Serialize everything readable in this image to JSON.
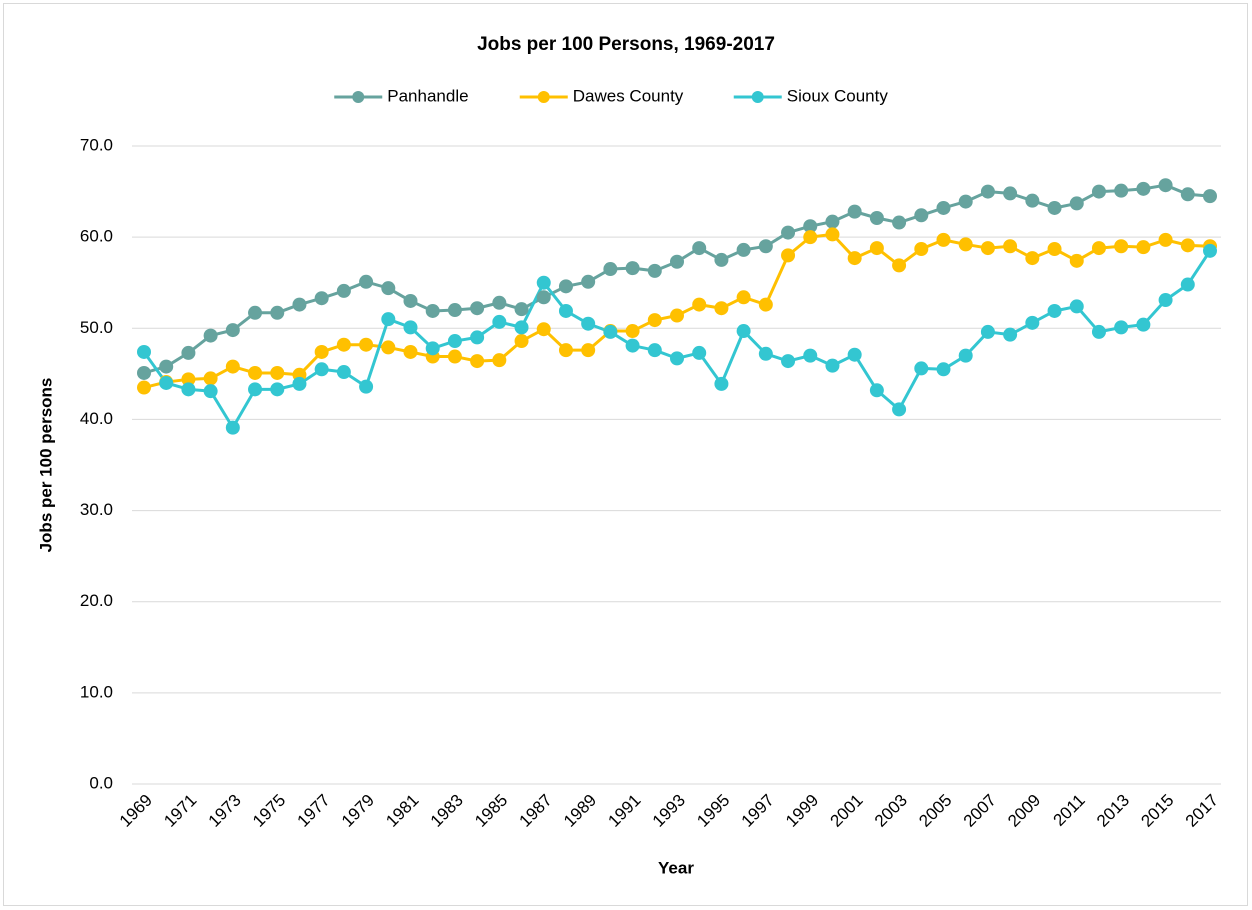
{
  "chart_data": {
    "type": "line",
    "title": "Jobs per 100 Persons, 1969-2017",
    "x_label": "Year",
    "y_label": "Jobs per 100 persons",
    "categories": [
      "1969",
      null,
      "1971",
      null,
      "1973",
      null,
      "1975",
      null,
      "1977",
      null,
      "1979",
      null,
      "1981",
      null,
      "1983",
      null,
      "1985",
      null,
      "1987",
      null,
      "1989",
      null,
      "1991",
      null,
      "1993",
      null,
      "1995",
      null,
      "1997",
      null,
      "1999",
      null,
      "2001",
      null,
      "2003",
      null,
      "2005",
      null,
      "2007",
      null,
      "2009",
      null,
      "2011",
      null,
      "2013",
      null,
      "2015",
      null,
      "2017"
    ],
    "series": [
      {
        "name": "Panhandle",
        "color": "#66a39e",
        "values": [
          45.1,
          45.8,
          47.3,
          49.2,
          49.8,
          51.7,
          51.7,
          52.6,
          53.3,
          54.1,
          55.1,
          54.4,
          53.0,
          51.9,
          52.0,
          52.2,
          52.8,
          52.1,
          53.4,
          54.6,
          55.1,
          56.5,
          56.6,
          56.3,
          57.3,
          58.8,
          57.5,
          58.6,
          59.0,
          60.5,
          61.2,
          61.7,
          62.8,
          62.1,
          61.6,
          62.4,
          63.2,
          63.9,
          65.0,
          64.8,
          64.0,
          63.2,
          63.7,
          65.0,
          65.1,
          65.3,
          65.7,
          64.7,
          64.5
        ]
      },
      {
        "name": "Dawes County",
        "color": "#ffc000",
        "values": [
          43.5,
          44.1,
          44.4,
          44.5,
          45.8,
          45.1,
          45.1,
          44.9,
          47.4,
          48.2,
          48.2,
          47.9,
          47.4,
          46.9,
          46.9,
          46.4,
          46.5,
          48.6,
          49.9,
          47.6,
          47.6,
          49.7,
          49.7,
          50.9,
          51.4,
          52.6,
          52.2,
          53.4,
          52.6,
          58.0,
          60.0,
          60.3,
          57.7,
          58.8,
          56.9,
          58.7,
          59.7,
          59.2,
          58.8,
          59.0,
          57.7,
          58.7,
          57.4,
          58.8,
          59.0,
          58.9,
          59.7,
          59.1,
          59.0
        ]
      },
      {
        "name": "Sioux County",
        "color": "#33c6d1",
        "values": [
          47.4,
          44.0,
          43.3,
          43.1,
          39.1,
          43.3,
          43.3,
          43.9,
          45.5,
          45.2,
          43.6,
          51.0,
          50.1,
          47.8,
          48.6,
          49.0,
          50.7,
          50.1,
          55.0,
          51.9,
          50.5,
          49.6,
          48.1,
          47.6,
          46.7,
          47.3,
          43.9,
          49.7,
          47.2,
          46.4,
          47.0,
          45.9,
          47.1,
          43.2,
          41.1,
          45.6,
          45.5,
          47.0,
          49.6,
          49.3,
          50.6,
          51.9,
          52.4,
          49.6,
          50.1,
          50.4,
          53.1,
          54.8,
          58.5
        ]
      }
    ],
    "ylim": [
      0,
      70
    ],
    "yticks": [
      {
        "value": 0,
        "label": "0.0"
      },
      {
        "value": 10,
        "label": "10.0"
      },
      {
        "value": 20,
        "label": "20.0"
      },
      {
        "value": 30,
        "label": "30.0"
      },
      {
        "value": 40,
        "label": "40.0"
      },
      {
        "value": 50,
        "label": "50.0"
      },
      {
        "value": 60,
        "label": "60.0"
      },
      {
        "value": 70,
        "label": "70.0"
      }
    ],
    "grid": true,
    "legend": "top"
  }
}
